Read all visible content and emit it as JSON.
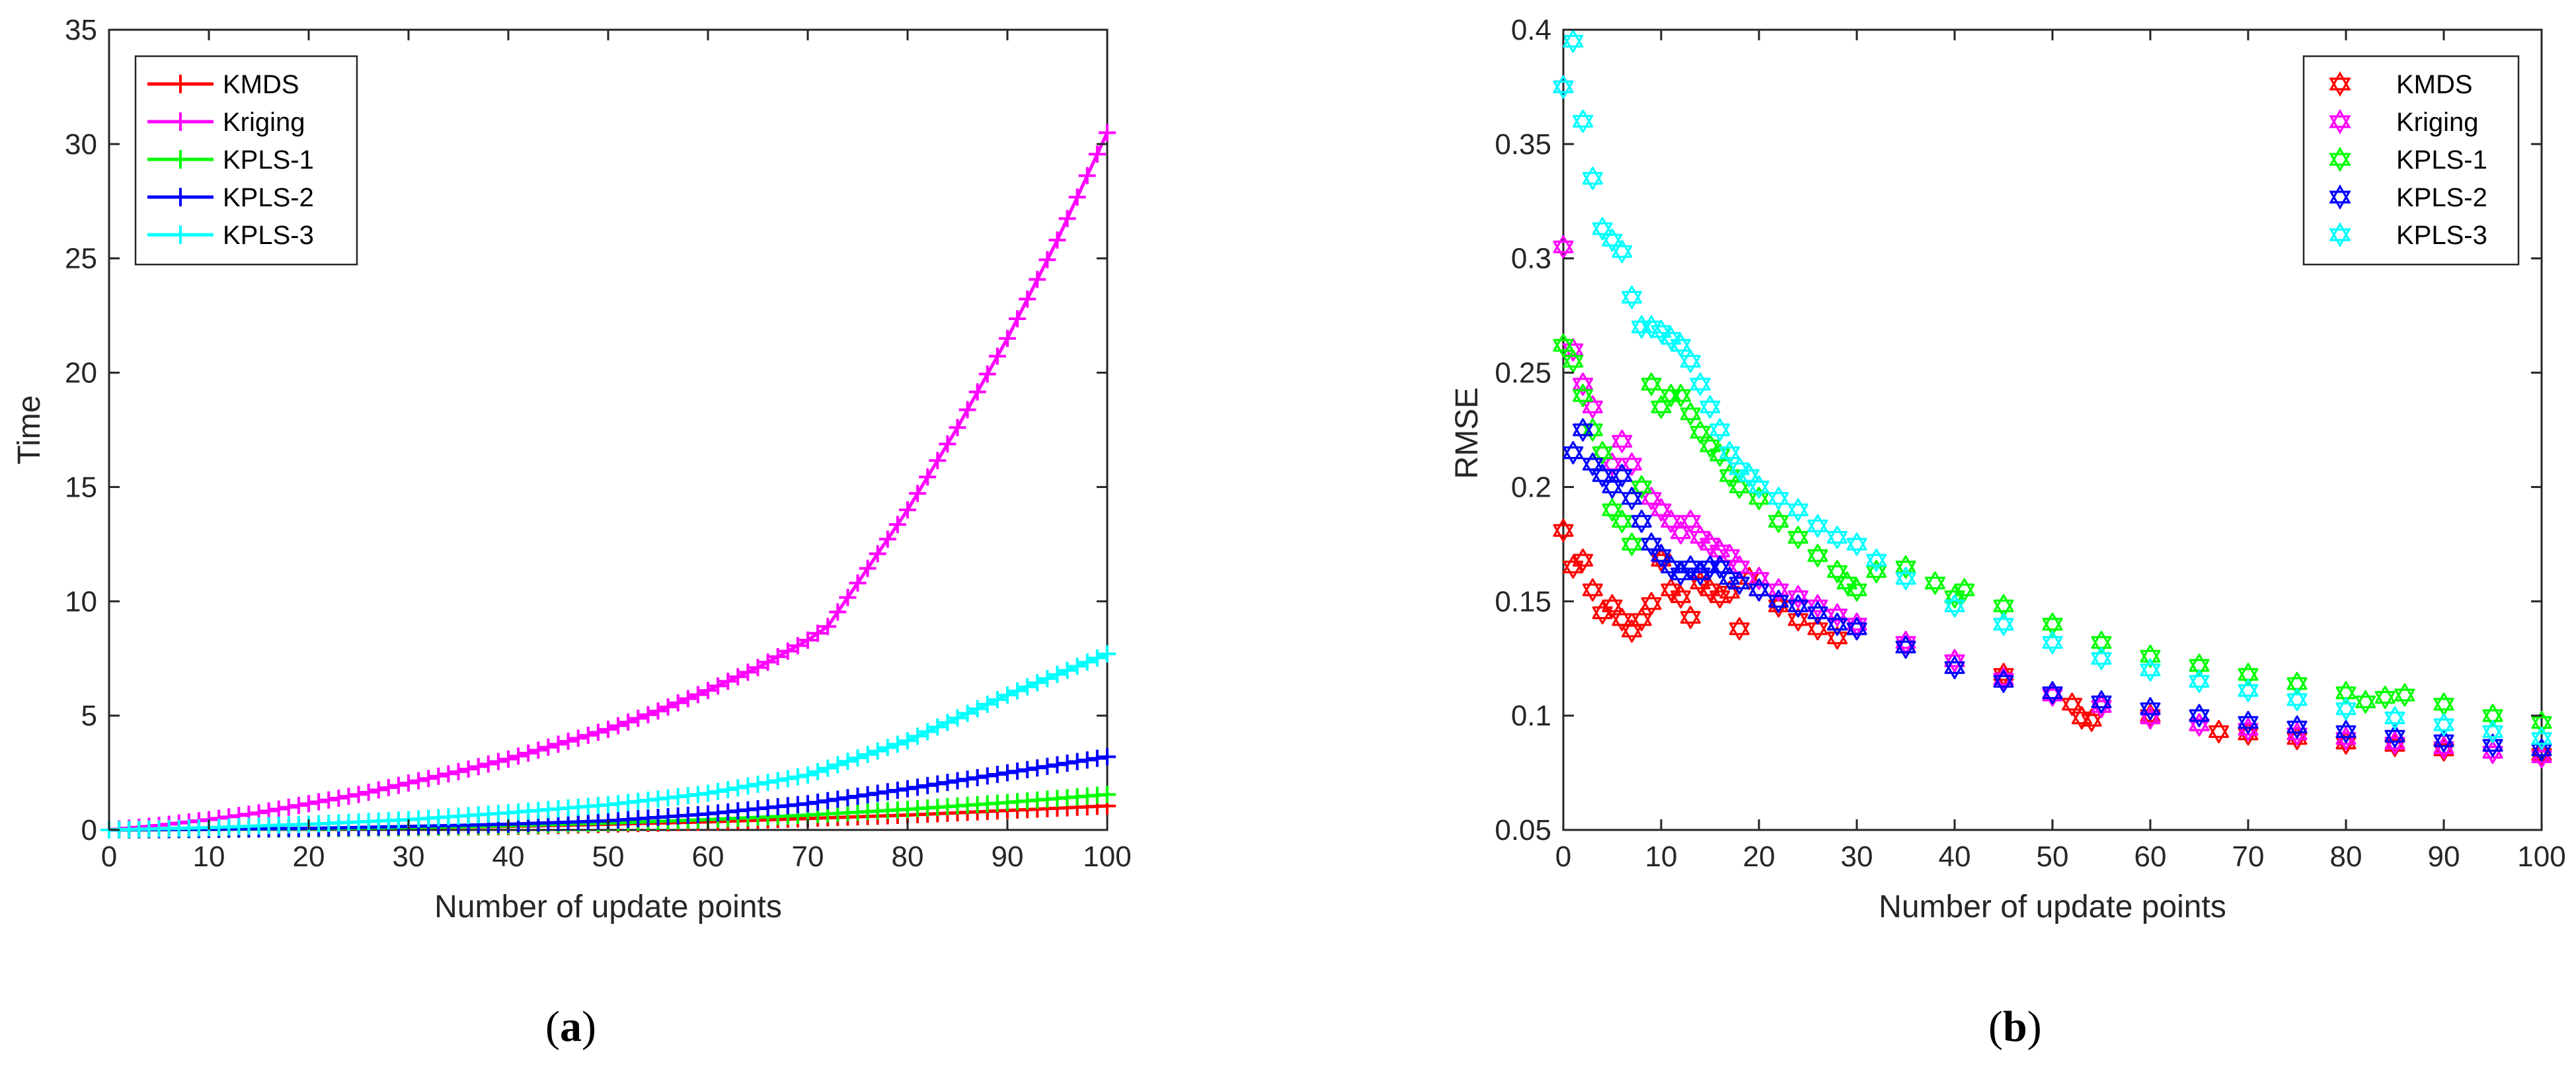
{
  "chart_data": [
    {
      "type": "line",
      "caption": "a",
      "xlabel": "Number of update points",
      "ylabel": "Time",
      "xlim": [
        0,
        100
      ],
      "ylim": [
        0,
        35
      ],
      "xticks": [
        0,
        10,
        20,
        30,
        40,
        50,
        60,
        70,
        80,
        90,
        100
      ],
      "yticks": [
        0,
        5,
        10,
        15,
        20,
        25,
        30,
        35
      ],
      "marker": "+",
      "legend_position": "top-left",
      "series": [
        {
          "name": "KMDS",
          "color": "#ff0000",
          "x": [
            0,
            10,
            20,
            30,
            40,
            50,
            60,
            70,
            80,
            90,
            100
          ],
          "y": [
            0,
            0.02,
            0.05,
            0.1,
            0.15,
            0.25,
            0.35,
            0.5,
            0.65,
            0.85,
            1.05
          ]
        },
        {
          "name": "Kriging",
          "color": "#ff00ff",
          "x": [
            0,
            5,
            10,
            15,
            20,
            25,
            30,
            35,
            40,
            45,
            50,
            55,
            60,
            65,
            70,
            72,
            75,
            80,
            85,
            90,
            95,
            100
          ],
          "y": [
            0,
            0.2,
            0.45,
            0.75,
            1.15,
            1.55,
            2.05,
            2.55,
            3.1,
            3.75,
            4.4,
            5.2,
            6.1,
            7.1,
            8.3,
            8.9,
            10.8,
            14.0,
            17.6,
            21.5,
            25.8,
            30.5
          ]
        },
        {
          "name": "KPLS-1",
          "color": "#00ff00",
          "x": [
            0,
            10,
            20,
            30,
            40,
            50,
            60,
            70,
            80,
            90,
            100
          ],
          "y": [
            0,
            0.02,
            0.05,
            0.1,
            0.18,
            0.3,
            0.45,
            0.65,
            0.9,
            1.2,
            1.55
          ]
        },
        {
          "name": "KPLS-2",
          "color": "#0000ff",
          "x": [
            0,
            10,
            20,
            30,
            40,
            50,
            60,
            70,
            80,
            90,
            100
          ],
          "y": [
            0,
            0.03,
            0.07,
            0.15,
            0.25,
            0.4,
            0.7,
            1.15,
            1.8,
            2.5,
            3.2
          ]
        },
        {
          "name": "KPLS-3",
          "color": "#00ffff",
          "x": [
            0,
            10,
            20,
            30,
            40,
            50,
            60,
            70,
            80,
            90,
            100
          ],
          "y": [
            0,
            0.1,
            0.25,
            0.45,
            0.75,
            1.1,
            1.6,
            2.4,
            3.9,
            5.9,
            7.7
          ]
        }
      ]
    },
    {
      "type": "scatter",
      "caption": "b",
      "xlabel": "Number of update points",
      "ylabel": "RMSE",
      "xlim": [
        0,
        100
      ],
      "ylim": [
        0.05,
        0.4
      ],
      "xticks": [
        0,
        10,
        20,
        30,
        40,
        50,
        60,
        70,
        80,
        90,
        100
      ],
      "yticks": [
        0.05,
        0.1,
        0.15,
        0.2,
        0.25,
        0.3,
        0.35,
        0.4
      ],
      "marker": "hexagram",
      "legend_position": "top-right",
      "series": [
        {
          "name": "KMDS",
          "color": "#ff0000",
          "x": [
            0,
            1,
            2,
            3,
            4,
            5,
            6,
            7,
            8,
            9,
            10,
            11,
            12,
            13,
            14,
            15,
            16,
            17,
            18,
            19,
            20,
            22,
            24,
            26,
            28,
            30,
            35,
            40,
            45,
            50,
            52,
            53,
            54,
            55,
            60,
            65,
            67,
            70,
            75,
            80,
            85,
            90,
            95,
            100
          ],
          "y": [
            0.181,
            0.165,
            0.168,
            0.155,
            0.145,
            0.148,
            0.142,
            0.137,
            0.142,
            0.149,
            0.168,
            0.155,
            0.152,
            0.143,
            0.158,
            0.155,
            0.152,
            0.154,
            0.138,
            0.16,
            0.155,
            0.148,
            0.142,
            0.138,
            0.134,
            0.138,
            0.13,
            0.124,
            0.118,
            0.11,
            0.105,
            0.099,
            0.098,
            0.104,
            0.1,
            0.096,
            0.093,
            0.092,
            0.09,
            0.088,
            0.087,
            0.085,
            0.084,
            0.083
          ]
        },
        {
          "name": "Kriging",
          "color": "#ff00ff",
          "x": [
            0,
            1,
            2,
            3,
            4,
            5,
            6,
            7,
            8,
            9,
            10,
            11,
            12,
            13,
            14,
            15,
            16,
            17,
            18,
            20,
            22,
            24,
            26,
            28,
            30,
            35,
            40,
            45,
            50,
            55,
            60,
            65,
            70,
            75,
            80,
            85,
            90,
            95,
            100
          ],
          "y": [
            0.305,
            0.26,
            0.245,
            0.235,
            0.215,
            0.21,
            0.22,
            0.21,
            0.2,
            0.195,
            0.19,
            0.185,
            0.18,
            0.185,
            0.178,
            0.175,
            0.172,
            0.17,
            0.165,
            0.16,
            0.155,
            0.152,
            0.148,
            0.144,
            0.14,
            0.132,
            0.124,
            0.116,
            0.109,
            0.104,
            0.099,
            0.096,
            0.094,
            0.092,
            0.09,
            0.088,
            0.086,
            0.084,
            0.082
          ]
        },
        {
          "name": "KPLS-1",
          "color": "#00ff00",
          "x": [
            0,
            1,
            2,
            3,
            4,
            5,
            6,
            7,
            8,
            9,
            10,
            11,
            12,
            13,
            14,
            15,
            16,
            17,
            18,
            19,
            20,
            22,
            24,
            26,
            28,
            29,
            30,
            32,
            35,
            38,
            40,
            41,
            45,
            50,
            55,
            60,
            65,
            70,
            75,
            80,
            82,
            84,
            86,
            90,
            95,
            100
          ],
          "y": [
            0.262,
            0.255,
            0.24,
            0.225,
            0.215,
            0.19,
            0.185,
            0.175,
            0.2,
            0.245,
            0.235,
            0.24,
            0.24,
            0.232,
            0.224,
            0.218,
            0.214,
            0.205,
            0.2,
            0.205,
            0.195,
            0.185,
            0.178,
            0.17,
            0.163,
            0.158,
            0.155,
            0.163,
            0.165,
            0.158,
            0.152,
            0.155,
            0.148,
            0.14,
            0.132,
            0.126,
            0.122,
            0.118,
            0.114,
            0.11,
            0.106,
            0.108,
            0.109,
            0.105,
            0.1,
            0.097
          ]
        },
        {
          "name": "KPLS-2",
          "color": "#0000ff",
          "x": [
            0,
            1,
            2,
            3,
            4,
            5,
            6,
            7,
            8,
            9,
            10,
            11,
            12,
            13,
            14,
            15,
            16,
            17,
            18,
            20,
            22,
            24,
            26,
            28,
            30,
            35,
            40,
            45,
            50,
            55,
            60,
            65,
            70,
            75,
            80,
            85,
            90,
            95,
            100
          ],
          "y": [
            0.375,
            0.215,
            0.225,
            0.21,
            0.205,
            0.2,
            0.205,
            0.195,
            0.185,
            0.175,
            0.17,
            0.165,
            0.162,
            0.165,
            0.162,
            0.165,
            0.165,
            0.16,
            0.158,
            0.155,
            0.15,
            0.148,
            0.145,
            0.14,
            0.138,
            0.13,
            0.121,
            0.115,
            0.11,
            0.106,
            0.103,
            0.1,
            0.097,
            0.095,
            0.093,
            0.091,
            0.089,
            0.087,
            0.085
          ]
        },
        {
          "name": "KPLS-3",
          "color": "#00ffff",
          "x": [
            0,
            1,
            2,
            3,
            4,
            5,
            6,
            7,
            8,
            9,
            10,
            11,
            12,
            13,
            14,
            15,
            16,
            17,
            18,
            19,
            20,
            22,
            24,
            26,
            28,
            30,
            32,
            35,
            40,
            45,
            50,
            55,
            60,
            65,
            70,
            75,
            80,
            85,
            90,
            95,
            100
          ],
          "y": [
            0.375,
            0.395,
            0.36,
            0.335,
            0.313,
            0.308,
            0.303,
            0.283,
            0.27,
            0.27,
            0.268,
            0.265,
            0.262,
            0.255,
            0.245,
            0.235,
            0.225,
            0.215,
            0.208,
            0.205,
            0.2,
            0.195,
            0.19,
            0.183,
            0.178,
            0.175,
            0.168,
            0.16,
            0.148,
            0.14,
            0.132,
            0.125,
            0.12,
            0.115,
            0.111,
            0.107,
            0.103,
            0.099,
            0.096,
            0.093,
            0.09
          ]
        }
      ]
    }
  ]
}
